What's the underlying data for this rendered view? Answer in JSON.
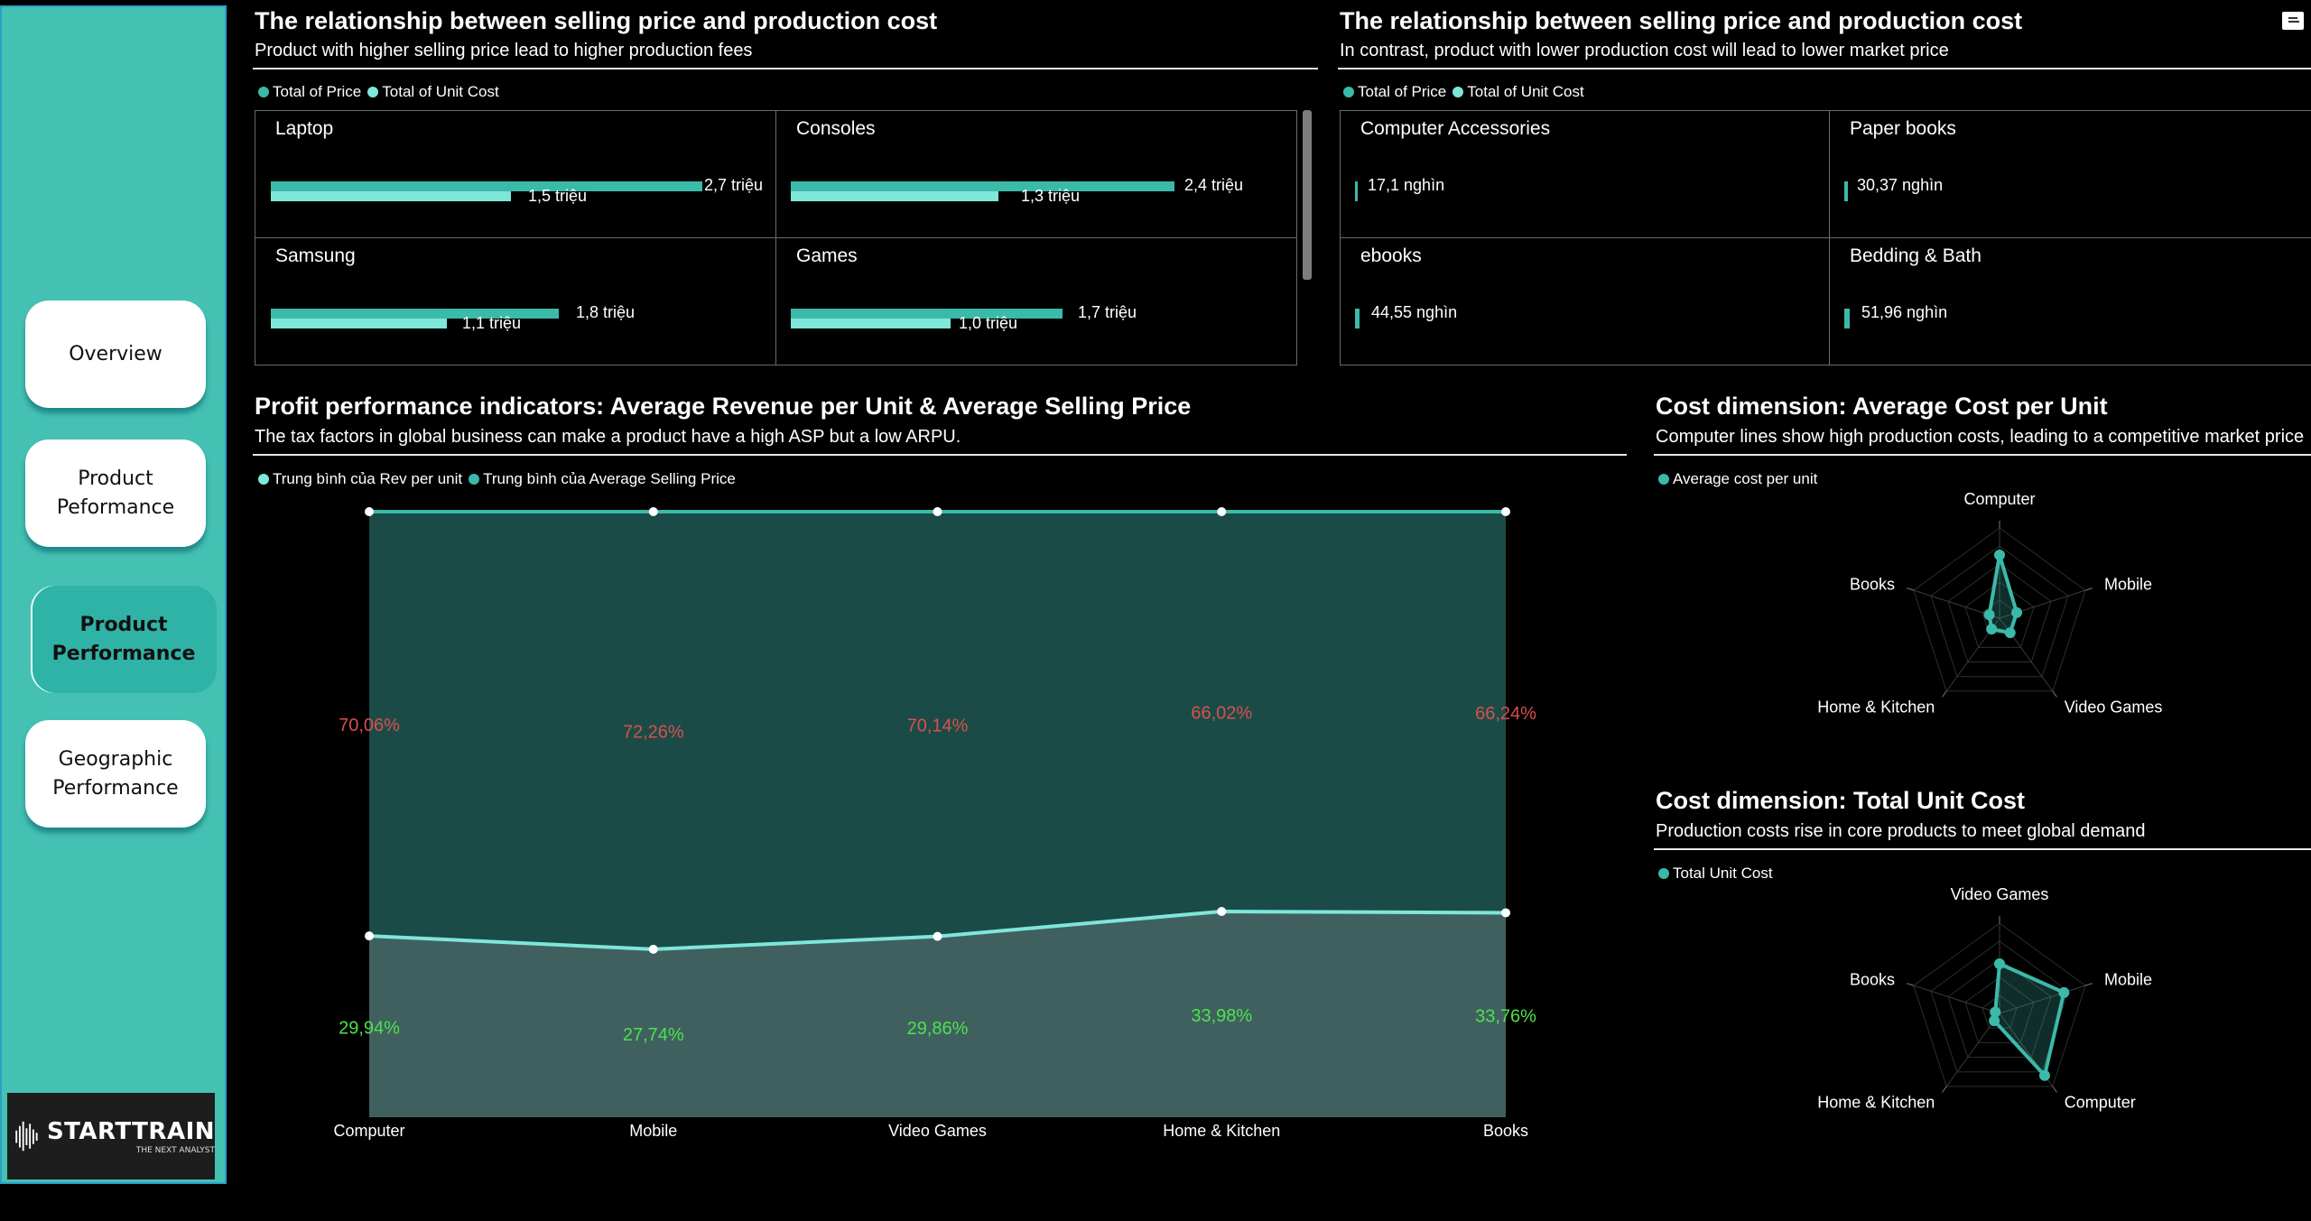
{
  "nav": {
    "items": [
      {
        "label": "Overview",
        "active": false
      },
      {
        "label": "Product Peformance",
        "active": false
      },
      {
        "label": "Product Performance",
        "active": true
      },
      {
        "label": "Geographic Performance",
        "active": false
      }
    ]
  },
  "logo": {
    "title": "STARTTRAIN",
    "subtitle": "THE NEXT ANALYST"
  },
  "colors": {
    "price": "#3bb9a9",
    "unit_cost": "#7fe6da",
    "area_top": "#1b4b47",
    "area_bottom": "#406060",
    "line": "#7fe6da",
    "red_label": "#d8504e",
    "green_label": "#4be34b",
    "radar": "#3bb9a9"
  },
  "panel_top_left": {
    "title": "The relationship between selling price and production cost",
    "subtitle": "Product with higher selling price lead to higher production fees",
    "legend": [
      "Total of Price",
      "Total of Unit Cost"
    ]
  },
  "panel_top_right": {
    "title": "The relationship between selling price and production cost",
    "subtitle": "In contrast, product with lower production cost will lead to lower market price",
    "legend": [
      "Total of Price",
      "Total of Unit Cost"
    ]
  },
  "panel_profit": {
    "title": "Profit performance indicators: Average Revenue per Unit & Average Selling Price",
    "subtitle": "The tax factors in global business can make a product have a high ASP but a low ARPU.",
    "legend": [
      "Trung bình của Rev per unit",
      "Trung bình của Average Selling Price"
    ]
  },
  "panel_cost_avg": {
    "title": "Cost dimension: Average Cost per Unit",
    "subtitle": "Computer lines show high production costs, leading to a competitive market price",
    "legend": [
      "Average cost per unit"
    ]
  },
  "panel_cost_total": {
    "title": "Cost dimension: Total Unit Cost",
    "subtitle": "Production costs rise in core products to meet global demand",
    "legend": [
      "Total Unit Cost"
    ]
  },
  "chart_data": [
    {
      "type": "bar",
      "layout": "small-multiples",
      "series": [
        {
          "name": "Total of Price"
        },
        {
          "name": "Total of Unit Cost"
        }
      ],
      "panels": [
        {
          "category": "Laptop",
          "price": 2.7,
          "unit_cost": 1.5,
          "price_label": "2,7 triệu",
          "unit_cost_label": "1,5 triệu"
        },
        {
          "category": "Consoles",
          "price": 2.4,
          "unit_cost": 1.3,
          "price_label": "2,4 triệu",
          "unit_cost_label": "1,3 triệu"
        },
        {
          "category": "Samsung",
          "price": 1.8,
          "unit_cost": 1.1,
          "price_label": "1,8 triệu",
          "unit_cost_label": "1,1 triệu"
        },
        {
          "category": "Games",
          "price": 1.7,
          "unit_cost": 1.0,
          "price_label": "1,7 triệu",
          "unit_cost_label": "1,0 triệu"
        }
      ],
      "max": 2.7
    },
    {
      "type": "bar",
      "layout": "small-multiples",
      "series": [
        {
          "name": "Total of Price"
        },
        {
          "name": "Total of Unit Cost"
        }
      ],
      "panels": [
        {
          "category": "Computer Accessories",
          "price": 17.1,
          "price_label": "17,1 nghìn"
        },
        {
          "category": "Paper books",
          "price": 30.37,
          "price_label": "30,37 nghìn"
        },
        {
          "category": "ebooks",
          "price": 44.55,
          "price_label": "44,55 nghìn"
        },
        {
          "category": "Bedding & Bath",
          "price": 51.96,
          "price_label": "51,96 nghìn"
        }
      ]
    },
    {
      "type": "area",
      "stacked": "100%",
      "categories": [
        "Computer",
        "Mobile",
        "Video Games",
        "Home & Kitchen",
        "Books"
      ],
      "series": [
        {
          "name": "Trung bình của Rev per unit",
          "values": [
            29.94,
            27.74,
            29.86,
            33.98,
            33.76
          ],
          "labels": [
            "29,94%",
            "27,74%",
            "29,86%",
            "33,98%",
            "33,76%"
          ]
        },
        {
          "name": "Trung bình của Average Selling Price",
          "values": [
            70.06,
            72.26,
            70.14,
            66.02,
            66.24
          ],
          "labels": [
            "70,06%",
            "72,26%",
            "70,14%",
            "66,02%",
            "66,24%"
          ]
        }
      ],
      "ylim": [
        0,
        100
      ]
    },
    {
      "type": "radar",
      "axes": [
        "Computer",
        "Mobile",
        "Video Games",
        "Home & Kitchen",
        "Books"
      ],
      "series": [
        {
          "name": "Average cost per unit",
          "values": [
            0.7,
            0.2,
            0.2,
            0.15,
            0.12
          ]
        }
      ],
      "rlim": [
        0,
        1
      ]
    },
    {
      "type": "radar",
      "axes": [
        "Video Games",
        "Mobile",
        "Computer",
        "Home & Kitchen",
        "Books"
      ],
      "series": [
        {
          "name": "Total Unit Cost",
          "values": [
            0.55,
            0.75,
            0.85,
            0.1,
            0.05
          ]
        }
      ],
      "rlim": [
        0,
        1
      ]
    }
  ]
}
